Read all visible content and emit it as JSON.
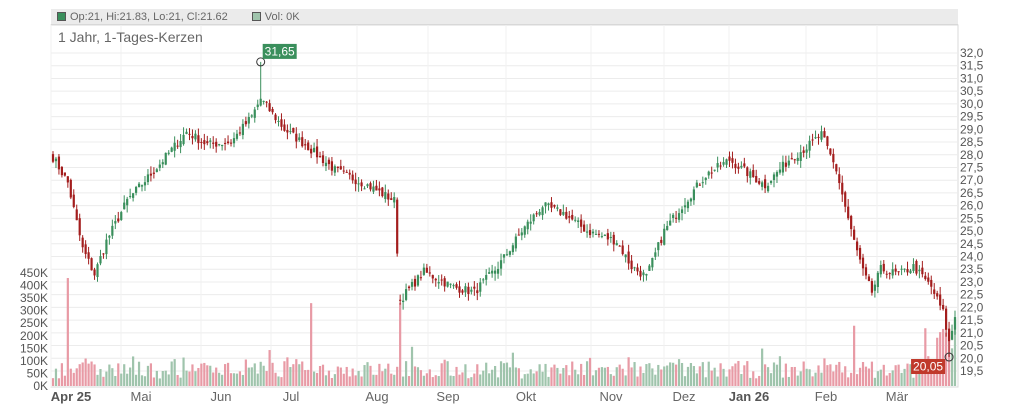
{
  "legend": {
    "price_label": "Op:21, Hi:21.83, Lo:21, Cl:21.62",
    "volume_label": "Vol: 0K",
    "price_color": "#3a8f5c",
    "volume_color": "#9fc4ac"
  },
  "chart_data": {
    "type": "candlestick",
    "title": "1 Jahr, 1-Tages-Kerzen",
    "x_labels": [
      "Apr 25",
      "Mai",
      "Jun",
      "Jul",
      "Aug",
      "Sep",
      "Okt",
      "Nov",
      "Dez",
      "Jan 26",
      "Feb",
      "Mär"
    ],
    "x_labels_bold": [
      "Apr 25",
      "Jan 26"
    ],
    "price_axis": {
      "ylim": [
        19.5,
        32.0
      ],
      "ticks": [
        "32,0",
        "31,5",
        "31,0",
        "30,5",
        "30,0",
        "29,5",
        "29,0",
        "28,5",
        "28,0",
        "27,5",
        "27,0",
        "26,5",
        "26,0",
        "25,5",
        "25,0",
        "24,5",
        "24,0",
        "23,5",
        "23,0",
        "22,5",
        "22,0",
        "21,5",
        "21,0",
        "20,5",
        "20,0",
        "19,5"
      ]
    },
    "volume_axis": {
      "ylim": [
        0,
        450000
      ],
      "ticks": [
        "450K",
        "400K",
        "350K",
        "300K",
        "250K",
        "200K",
        "150K",
        "100K",
        "50K",
        "0K"
      ]
    },
    "annotations": [
      {
        "label": "31,65",
        "kind": "high",
        "value": 31.65,
        "color": "#3a8f5c"
      },
      {
        "label": "20,05",
        "kind": "low",
        "value": 20.05,
        "color": "#c0392b"
      }
    ],
    "last_close": 21.62,
    "up_color": "#3a8f5c",
    "down_color": "#a31d1d",
    "volume_up_color": "#9fc4ac",
    "volume_down_color": "#e89aa5",
    "anchors": [
      {
        "d": 0,
        "p": 27.9
      },
      {
        "d": 5,
        "p": 26.9
      },
      {
        "d": 10,
        "p": 24.3
      },
      {
        "d": 14,
        "p": 23.3
      },
      {
        "d": 18,
        "p": 24.6
      },
      {
        "d": 25,
        "p": 26.2
      },
      {
        "d": 35,
        "p": 27.5
      },
      {
        "d": 45,
        "p": 28.9
      },
      {
        "d": 52,
        "p": 28.4
      },
      {
        "d": 60,
        "p": 28.5
      },
      {
        "d": 67,
        "p": 29.5
      },
      {
        "d": 70,
        "p": 30.2
      },
      {
        "d": 78,
        "p": 29.0
      },
      {
        "d": 85,
        "p": 28.4
      },
      {
        "d": 95,
        "p": 27.4
      },
      {
        "d": 106,
        "p": 26.8
      },
      {
        "d": 115,
        "p": 26.2
      },
      {
        "d": 117,
        "p": 22.3
      },
      {
        "d": 125,
        "p": 23.4
      },
      {
        "d": 135,
        "p": 22.8
      },
      {
        "d": 142,
        "p": 22.6
      },
      {
        "d": 150,
        "p": 23.6
      },
      {
        "d": 158,
        "p": 25.0
      },
      {
        "d": 165,
        "p": 26.0
      },
      {
        "d": 172,
        "p": 25.7
      },
      {
        "d": 180,
        "p": 25.0
      },
      {
        "d": 190,
        "p": 24.6
      },
      {
        "d": 195,
        "p": 23.6
      },
      {
        "d": 200,
        "p": 23.2
      },
      {
        "d": 206,
        "p": 25.0
      },
      {
        "d": 212,
        "p": 26.0
      },
      {
        "d": 220,
        "p": 27.2
      },
      {
        "d": 228,
        "p": 27.8
      },
      {
        "d": 235,
        "p": 27.2
      },
      {
        "d": 240,
        "p": 26.8
      },
      {
        "d": 248,
        "p": 27.8
      },
      {
        "d": 254,
        "p": 28.3
      },
      {
        "d": 259,
        "p": 28.8
      },
      {
        "d": 264,
        "p": 27.4
      },
      {
        "d": 269,
        "p": 25.0
      },
      {
        "d": 273,
        "p": 23.4
      },
      {
        "d": 276,
        "p": 22.6
      },
      {
        "d": 279,
        "p": 23.5
      },
      {
        "d": 285,
        "p": 23.3
      },
      {
        "d": 290,
        "p": 23.6
      },
      {
        "d": 296,
        "p": 22.8
      },
      {
        "d": 300,
        "p": 21.8
      },
      {
        "d": 302,
        "p": 20.6
      },
      {
        "d": 304,
        "p": 21.6
      }
    ]
  }
}
